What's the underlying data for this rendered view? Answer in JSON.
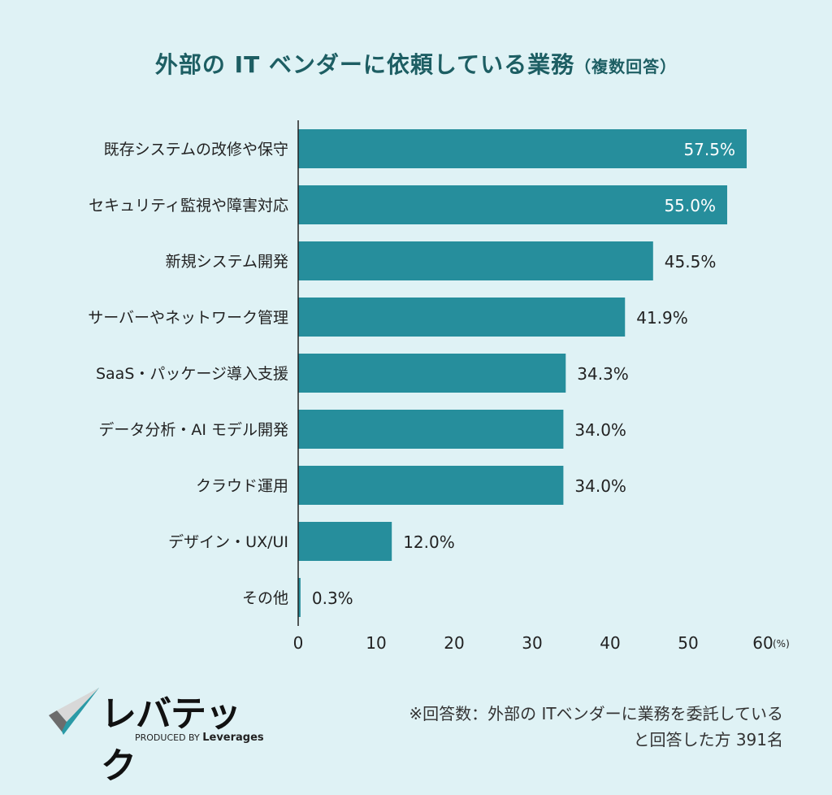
{
  "chart_data": {
    "type": "bar",
    "orientation": "horizontal",
    "title": "外部の IT ベンダーに依頼している業務",
    "subtitle": "（複数回答）",
    "categories": [
      "既存システムの改修や保守",
      "セキュリティ監視や障害対応",
      "新規システム開発",
      "サーバーやネットワーク管理",
      "SaaS・パッケージ導入支援",
      "データ分析・AI モデル開発",
      "クラウド運用",
      "デザイン・UX/UI",
      "その他"
    ],
    "values": [
      57.5,
      55.0,
      45.5,
      41.9,
      34.3,
      34.0,
      34.0,
      12.0,
      0.3
    ],
    "value_labels": [
      "57.5%",
      "55.0%",
      "45.5%",
      "41.9%",
      "34.3%",
      "34.0%",
      "34.0%",
      "12.0%",
      "0.3%"
    ],
    "xlim": [
      0,
      60
    ],
    "xticks": [
      "0",
      "10",
      "20",
      "30",
      "40",
      "50",
      "60"
    ],
    "xunit": "(%)",
    "grid": false,
    "bar_color": "#268e9c",
    "title_color": "#1d5e63"
  },
  "footer": {
    "note_line1": "※回答数：外部の ITベンダーに業務を委託している",
    "note_line2": "と回答した方  391名",
    "logo_text": "レバテック",
    "logo_sub": "PRODUCED BY",
    "logo_brand": "Leverages"
  }
}
